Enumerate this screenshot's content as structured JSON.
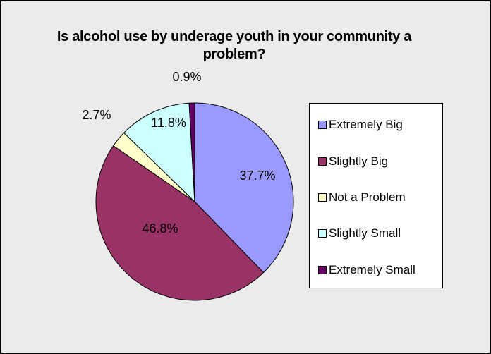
{
  "chart_data": {
    "type": "pie",
    "title": "Is alcohol use by underage youth in your community a problem?",
    "start_angle_deg": 0,
    "direction": "clockwise",
    "legend_position": "right",
    "slices": [
      {
        "label": "Extremely Big",
        "value": 37.7,
        "display": "37.7%",
        "color": "#9999ff"
      },
      {
        "label": "Slightly Big",
        "value": 46.8,
        "display": "46.8%",
        "color": "#993366"
      },
      {
        "label": "Not a Problem",
        "value": 2.7,
        "display": "2.7%",
        "color": "#ffffcc"
      },
      {
        "label": "Slightly Small",
        "value": 11.8,
        "display": "11.8%",
        "color": "#ccffff"
      },
      {
        "label": "Extremely Small",
        "value": 0.9,
        "display": "0.9%",
        "color": "#660066"
      }
    ]
  }
}
